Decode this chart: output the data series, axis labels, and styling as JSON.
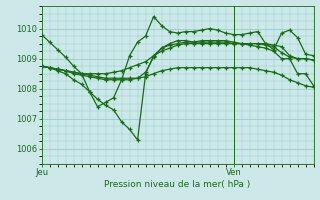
{
  "bg_color": "#cce8e8",
  "grid_color": "#99cccc",
  "line_color": "#1a6b1a",
  "xlabel_bottom": "Pression niveau de la mer( hPa )",
  "label_jeu": "Jeu",
  "label_ven": "Ven",
  "ylim": [
    1005.5,
    1010.75
  ],
  "yticks": [
    1006,
    1007,
    1008,
    1009,
    1010
  ],
  "xlim": [
    0,
    34
  ],
  "ven_x": 24,
  "series": [
    {
      "x": [
        0,
        1,
        2,
        3,
        4,
        5,
        6,
        7,
        8,
        9,
        10,
        11,
        12,
        13,
        14,
        15,
        16,
        17,
        18,
        19,
        20,
        21,
        22,
        23,
        24,
        25,
        26,
        27,
        28,
        29,
        30,
        31,
        32,
        33,
        34
      ],
      "y": [
        1009.8,
        1009.55,
        1009.3,
        1009.05,
        1008.75,
        1008.5,
        1007.9,
        1007.4,
        1007.55,
        1007.7,
        1008.3,
        1009.1,
        1009.55,
        1009.75,
        1010.4,
        1010.1,
        1009.9,
        1009.85,
        1009.9,
        1009.9,
        1009.95,
        1010.0,
        1009.95,
        1009.85,
        1009.8,
        1009.8,
        1009.85,
        1009.9,
        1009.5,
        1009.3,
        1009.85,
        1009.95,
        1009.7,
        1009.15,
        1009.1
      ]
    },
    {
      "x": [
        0,
        1,
        2,
        3,
        4,
        5,
        6,
        7,
        8,
        9,
        10,
        11,
        12,
        13,
        14,
        15,
        16,
        17,
        18,
        19,
        20,
        21,
        22,
        23,
        24,
        25,
        26,
        27,
        28,
        29,
        30,
        31,
        32,
        33,
        34
      ],
      "y": [
        1008.75,
        1008.7,
        1008.6,
        1008.5,
        1008.3,
        1008.15,
        1007.9,
        1007.65,
        1007.45,
        1007.3,
        1006.9,
        1006.65,
        1006.3,
        1008.5,
        1009.1,
        1009.35,
        1009.5,
        1009.6,
        1009.6,
        1009.55,
        1009.6,
        1009.6,
        1009.6,
        1009.6,
        1009.55,
        1009.5,
        1009.45,
        1009.4,
        1009.35,
        1009.25,
        1009.0,
        1009.0,
        1008.5,
        1008.5,
        1008.1
      ]
    },
    {
      "x": [
        0,
        1,
        2,
        3,
        4,
        5,
        6,
        7,
        8,
        9,
        10,
        11,
        12,
        13,
        14,
        15,
        16,
        17,
        18,
        19,
        20,
        21,
        22,
        23,
        24,
        25,
        26,
        27,
        28,
        29,
        30,
        31,
        32,
        33,
        34
      ],
      "y": [
        1008.75,
        1008.7,
        1008.65,
        1008.6,
        1008.55,
        1008.5,
        1008.45,
        1008.4,
        1008.35,
        1008.35,
        1008.35,
        1008.35,
        1008.35,
        1008.55,
        1009.05,
        1009.35,
        1009.45,
        1009.5,
        1009.55,
        1009.55,
        1009.55,
        1009.55,
        1009.55,
        1009.55,
        1009.5,
        1009.5,
        1009.5,
        1009.5,
        1009.45,
        1009.4,
        1009.2,
        1009.05,
        1009.0,
        1009.0,
        1008.95
      ]
    },
    {
      "x": [
        0,
        1,
        2,
        3,
        4,
        5,
        6,
        7,
        8,
        9,
        10,
        11,
        12,
        13,
        14,
        15,
        16,
        17,
        18,
        19,
        20,
        21,
        22,
        23,
        24,
        25,
        26,
        27,
        28,
        29,
        30,
        31,
        32,
        33,
        34
      ],
      "y": [
        1008.75,
        1008.7,
        1008.65,
        1008.6,
        1008.55,
        1008.5,
        1008.5,
        1008.5,
        1008.5,
        1008.55,
        1008.6,
        1008.7,
        1008.8,
        1008.9,
        1009.1,
        1009.25,
        1009.35,
        1009.45,
        1009.5,
        1009.5,
        1009.5,
        1009.5,
        1009.5,
        1009.5,
        1009.5,
        1009.5,
        1009.5,
        1009.5,
        1009.5,
        1009.45,
        1009.4,
        1009.1,
        1009.0,
        1009.0,
        1008.95
      ]
    },
    {
      "x": [
        0,
        1,
        2,
        3,
        4,
        5,
        6,
        7,
        8,
        9,
        10,
        11,
        12,
        13,
        14,
        15,
        16,
        17,
        18,
        19,
        20,
        21,
        22,
        23,
        24,
        25,
        26,
        27,
        28,
        29,
        30,
        31,
        32,
        33,
        34
      ],
      "y": [
        1008.75,
        1008.7,
        1008.65,
        1008.6,
        1008.5,
        1008.45,
        1008.4,
        1008.35,
        1008.3,
        1008.3,
        1008.3,
        1008.3,
        1008.35,
        1008.4,
        1008.5,
        1008.6,
        1008.65,
        1008.7,
        1008.7,
        1008.7,
        1008.7,
        1008.7,
        1008.7,
        1008.7,
        1008.7,
        1008.7,
        1008.7,
        1008.65,
        1008.6,
        1008.55,
        1008.45,
        1008.3,
        1008.2,
        1008.1,
        1008.05
      ]
    }
  ]
}
